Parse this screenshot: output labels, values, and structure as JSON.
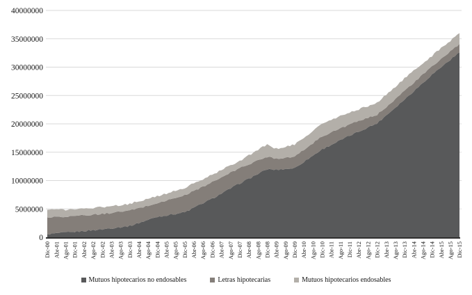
{
  "chart_data": {
    "type": "area",
    "stacked": true,
    "title": "",
    "xlabel": "",
    "ylabel": "",
    "ylim": [
      0,
      40000000
    ],
    "y_ticks": [
      0,
      5000000,
      10000000,
      15000000,
      20000000,
      25000000,
      30000000,
      35000000,
      40000000
    ],
    "grid": "horizontal",
    "legend_position": "bottom",
    "x_labels": [
      "Dic-00",
      "Abr-01",
      "Ago-01",
      "Dic-01",
      "Abr-02",
      "Ago-02",
      "Dic-02",
      "Abr-03",
      "Ago-03",
      "Dic-03",
      "Abr-04",
      "Ago-04",
      "Dic-04",
      "Abr-05",
      "Ago-05",
      "Dic-05",
      "Abr-06",
      "Ago-06",
      "Dic-06",
      "Abr-07",
      "Ago-07",
      "Dic-07",
      "Abr-08",
      "Ago-08",
      "Dic-08",
      "Abr-09",
      "Ago-09",
      "Dic-09",
      "Abr-10",
      "Ago-10",
      "Dic-10",
      "Abr-11",
      "Ago-11",
      "Dic-11",
      "Abr-12",
      "Ago-12",
      "Dic-12",
      "Abr-13",
      "Ago-13",
      "Dic-13",
      "Abr-14",
      "Ago-14",
      "Dic-14",
      "Abr-15",
      "Ago-15",
      "Dic-15"
    ],
    "series": [
      {
        "name": "Mutuos hipotecarios no endosables",
        "color": "#58595a",
        "values": [
          550000,
          680000,
          820000,
          950000,
          1100000,
          1250000,
          1400000,
          1600000,
          1800000,
          2000000,
          2530000,
          3070000,
          3600000,
          3870000,
          4130000,
          4400000,
          5200000,
          6000000,
          6800000,
          7700000,
          8600000,
          9500000,
          10330000,
          11170000,
          12000000,
          11900000,
          12050000,
          12200000,
          13300000,
          14400000,
          15500000,
          16300000,
          17100000,
          17900000,
          18630000,
          19370000,
          20100000,
          21500000,
          22900000,
          24300000,
          25770000,
          27230000,
          28700000,
          30000000,
          31300000,
          32600000
        ]
      },
      {
        "name": "Letras hipotecarias",
        "color": "#847e79",
        "values": [
          2950000,
          2900000,
          2850000,
          2800000,
          2770000,
          2730000,
          2700000,
          2700000,
          2700000,
          2700000,
          2600000,
          2500000,
          2400000,
          2600000,
          2800000,
          3000000,
          2970000,
          2930000,
          2900000,
          2830000,
          2770000,
          2700000,
          2540000,
          2360000,
          2200000,
          2000000,
          2000000,
          2000000,
          2100000,
          2200000,
          2300000,
          2200000,
          2100000,
          2000000,
          1840000,
          1660000,
          1500000,
          1500000,
          1500000,
          1500000,
          1460000,
          1440000,
          1400000,
          1430000,
          1470000,
          1500000
        ]
      },
      {
        "name": "Mutuos hipotecarios endosables",
        "color": "#b3afa9",
        "values": [
          1350000,
          1290000,
          1210000,
          1150000,
          1160000,
          1190000,
          1200000,
          1200000,
          1200000,
          1200000,
          1200000,
          1200000,
          1200000,
          1230000,
          1270000,
          1300000,
          1300000,
          1300000,
          1300000,
          1300000,
          1300000,
          1300000,
          1560000,
          1970000,
          2100000,
          1700000,
          1950000,
          2100000,
          2130000,
          2170000,
          2200000,
          2170000,
          2130000,
          2100000,
          2100000,
          2100000,
          2100000,
          2130000,
          2170000,
          2200000,
          2100000,
          2000000,
          1900000,
          1900000,
          1900000,
          1900000
        ]
      }
    ]
  },
  "colors": {
    "background": "#ffffff",
    "gridline": "#d9d9d9",
    "axis_line": "#2f2f2f",
    "text": "#151515"
  }
}
